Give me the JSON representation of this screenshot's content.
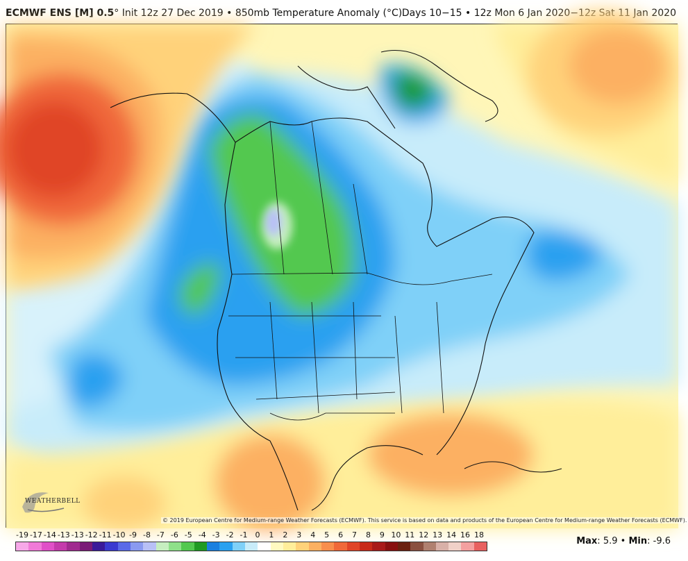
{
  "header": {
    "model": "ECMWF ENS [M] 0.5",
    "degree": "°",
    "init_text": "Init 12z 27 Dec 2019",
    "separator": "•",
    "field": "850mb Temperature Anomaly (°C)",
    "period": "Days 10−15 • 12z Mon 6 Jan 2020−12z Sat 11 Jan 2020"
  },
  "map": {
    "region": "North America",
    "copyright": "© 2019 European Centre for Medium-range Weather Forecasts (ECMWF). This service is based on data and products of the European Centre for Medium-range Weather Forecasts (ECMWF).",
    "logo_text": "WEATHERBELL"
  },
  "legend": {
    "labels": [
      "-19",
      "-17",
      "-14",
      "-13",
      "-13",
      "-12",
      "-11",
      "-10",
      "-9",
      "-8",
      "-7",
      "-6",
      "-5",
      "-4",
      "-3",
      "-2",
      "-1",
      "0",
      "1",
      "2",
      "3",
      "4",
      "5",
      "6",
      "7",
      "8",
      "9",
      "10",
      "11",
      "12",
      "13",
      "14",
      "16",
      "18"
    ],
    "colors": [
      "#f7a8e8",
      "#f07ad8",
      "#e050c8",
      "#c43aac",
      "#a02a90",
      "#7a1a78",
      "#3a1a9a",
      "#3a3ad0",
      "#5a6ae8",
      "#8a9af0",
      "#b8c0f6",
      "#c6eec0",
      "#8ee08a",
      "#52c850",
      "#1f9a24",
      "#1a7fe0",
      "#2aa0f0",
      "#7fd0f8",
      "#c8ecfa",
      "#ffffff",
      "#fffac0",
      "#ffee9a",
      "#ffd27a",
      "#fcb062",
      "#f88e4e",
      "#f0683a",
      "#e04428",
      "#c82a1a",
      "#a81a1a",
      "#881010",
      "#6a2010",
      "#8a5040",
      "#b08070",
      "#d8b0a8",
      "#f0d0c8",
      "#f4a0a0",
      "#e86060"
    ]
  },
  "stats": {
    "max_label": "Max",
    "max_value": "5.9",
    "min_label": "Min",
    "min_value": "-9.6",
    "bullet": "•"
  }
}
